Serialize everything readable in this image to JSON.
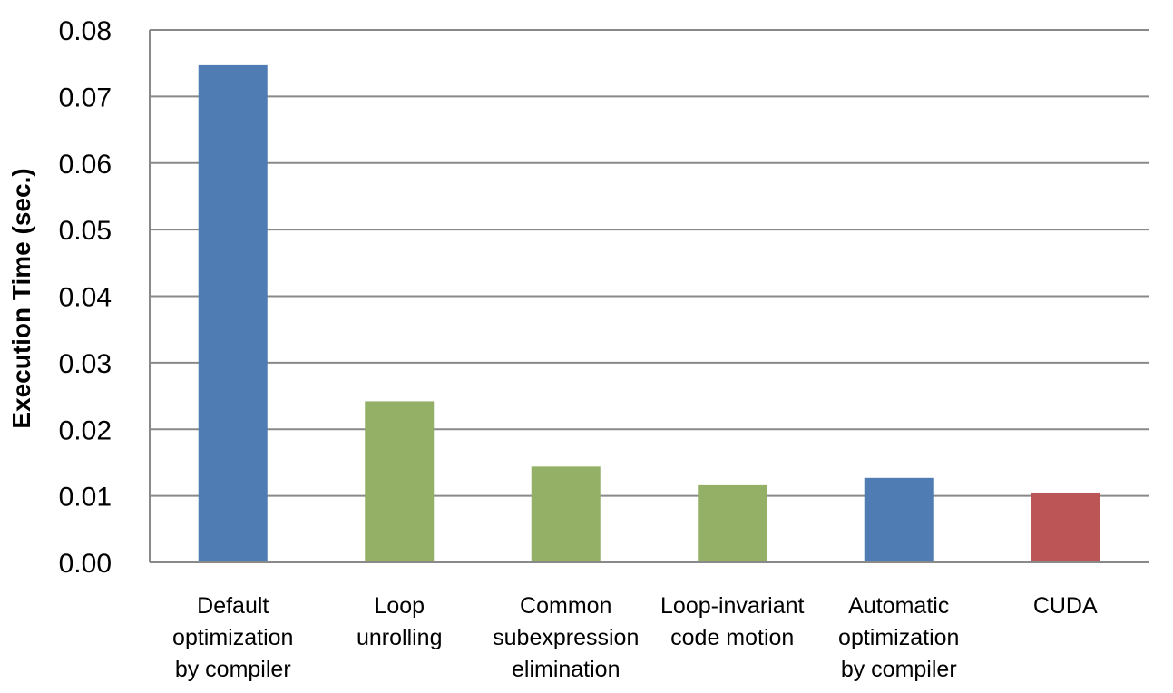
{
  "chart_data": {
    "type": "bar",
    "title": "",
    "xlabel": "",
    "ylabel": "Execution Time (sec.)",
    "ylim": [
      0,
      0.08
    ],
    "yticks": [
      0.0,
      0.01,
      0.02,
      0.03,
      0.04,
      0.05,
      0.06,
      0.07,
      0.08
    ],
    "ytick_labels": [
      "0.00",
      "0.01",
      "0.02",
      "0.03",
      "0.04",
      "0.05",
      "0.06",
      "0.07",
      "0.08"
    ],
    "grid": true,
    "legend": "none",
    "categories": [
      [
        "Default",
        "optimization",
        "by compiler"
      ],
      [
        "Loop",
        "unrolling"
      ],
      [
        "Common",
        "subexpression",
        "elimination"
      ],
      [
        "Loop-invariant",
        "code motion"
      ],
      [
        "Automatic",
        "optimization",
        "by compiler"
      ],
      [
        "CUDA"
      ]
    ],
    "values": [
      0.0747,
      0.0242,
      0.0144,
      0.0116,
      0.0127,
      0.0105
    ],
    "bar_colors": [
      "#4f7db3",
      "#93b066",
      "#93b066",
      "#93b066",
      "#4f7db3",
      "#bc5556"
    ],
    "colors": {
      "grid": "#898989",
      "axis": "#898989"
    }
  }
}
